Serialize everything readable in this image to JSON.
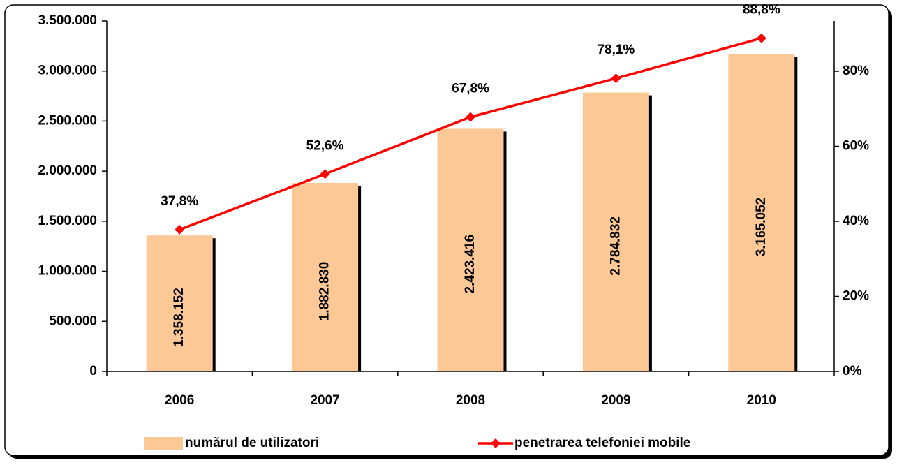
{
  "chart_data": {
    "type": "bar",
    "categories": [
      "2006",
      "2007",
      "2008",
      "2009",
      "2010"
    ],
    "series": [
      {
        "name": "numărul de utilizatori",
        "color": "#fcc896",
        "values": [
          1358152,
          1882830,
          2423416,
          2784832,
          3165052
        ],
        "value_labels": [
          "1.358.152",
          "1.882.830",
          "2.423.416",
          "2.784.832",
          "3.165.052"
        ]
      },
      {
        "name": "penetrarea telefoniei mobile",
        "color": "#ff0000",
        "axis": "y2",
        "values": [
          37.8,
          52.6,
          67.8,
          78.1,
          88.8
        ],
        "value_labels": [
          "37,8%",
          "52,6%",
          "67,8%",
          "78,1%",
          "88,8%"
        ]
      }
    ],
    "ylim": [
      0,
      3500000
    ],
    "yticks": [
      0,
      {
        "value": 500000,
        "label": "500.000"
      },
      {
        "value": 1000000,
        "label": "1.000.000"
      },
      {
        "value": 1500000,
        "label": "1.500.000"
      },
      {
        "value": 2000000,
        "label": "2.000.000"
      },
      {
        "value": 2500000,
        "label": "2.500.000"
      },
      {
        "value": 3000000,
        "label": "3.000.000"
      },
      {
        "value": 3500000,
        "label": "3.500.000"
      }
    ],
    "y2lim": [
      0,
      93.4
    ],
    "y2ticks": [
      {
        "value": 0,
        "label": "0%"
      },
      {
        "value": 20,
        "label": "20%"
      },
      {
        "value": 40,
        "label": "40%"
      },
      {
        "value": 60,
        "label": "60%"
      },
      {
        "value": 80,
        "label": "80%"
      }
    ],
    "legend": "bottom"
  }
}
